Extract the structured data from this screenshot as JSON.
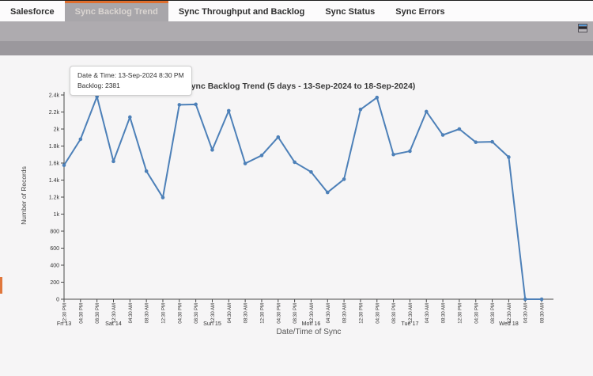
{
  "tabs": {
    "items": [
      {
        "label": "Salesforce",
        "active": false
      },
      {
        "label": "Sync Backlog Trend",
        "active": true
      },
      {
        "label": "Sync Throughput and Backlog",
        "active": false
      },
      {
        "label": "Sync Status",
        "active": false
      },
      {
        "label": "Sync Errors",
        "active": false
      }
    ]
  },
  "toolbar": {
    "window_icon": "window-icon"
  },
  "tooltip": {
    "datetime_label": "Date & Time: 13-Sep-2024 8:30 PM",
    "backlog_label": "Backlog: 2381"
  },
  "chart_data": {
    "type": "line",
    "title": "Sync Backlog Trend (5 days - 13-Sep-2024 to 18-Sep-2024)",
    "xlabel": "Date/Time of Sync",
    "ylabel": "Number of Records",
    "ylim": [
      0,
      2400
    ],
    "grid": false,
    "legend": "none",
    "y_ticks": [
      {
        "value": 0,
        "label": "0"
      },
      {
        "value": 200,
        "label": "200"
      },
      {
        "value": 400,
        "label": "400"
      },
      {
        "value": 600,
        "label": "600"
      },
      {
        "value": 800,
        "label": "800"
      },
      {
        "value": 1000,
        "label": "1k"
      },
      {
        "value": 1200,
        "label": "1.2k"
      },
      {
        "value": 1400,
        "label": "1.4k"
      },
      {
        "value": 1600,
        "label": "1.6k"
      },
      {
        "value": 1800,
        "label": "1.8k"
      },
      {
        "value": 2000,
        "label": "2k"
      },
      {
        "value": 2200,
        "label": "2.2k"
      },
      {
        "value": 2400,
        "label": "2.4k"
      }
    ],
    "x_labels": [
      "12:30 PM",
      "04:30 PM",
      "08:30 PM",
      "12:30 AM",
      "04:30 AM",
      "08:30 AM",
      "12:30 PM",
      "04:30 PM",
      "08:30 PM",
      "12:30 AM",
      "04:30 AM",
      "08:30 AM",
      "12:30 PM",
      "04:30 PM",
      "08:30 PM",
      "12:30 AM",
      "04:30 AM",
      "08:30 AM",
      "12:30 PM",
      "04:30 PM",
      "08:30 PM",
      "12:30 AM",
      "04:30 AM",
      "08:30 AM",
      "12:30 PM",
      "04:30 PM",
      "08:30 PM",
      "12:30 AM",
      "04:30 AM",
      "08:30 AM"
    ],
    "day_labels": [
      {
        "index": 0,
        "label": "Fri 13"
      },
      {
        "index": 3,
        "label": "Sat 14"
      },
      {
        "index": 9,
        "label": "Sun 15"
      },
      {
        "index": 15,
        "label": "Mon 16"
      },
      {
        "index": 21,
        "label": "Tue 17"
      },
      {
        "index": 27,
        "label": "Wed 18"
      }
    ],
    "series": [
      {
        "name": "Backlog",
        "color": "#4d80b8",
        "values": [
          1575,
          1880,
          2381,
          1620,
          2140,
          1505,
          1195,
          2285,
          2290,
          1755,
          2215,
          1595,
          1690,
          1905,
          1610,
          1495,
          1255,
          1410,
          2230,
          2370,
          1700,
          1740,
          2205,
          1930,
          2000,
          1845,
          1850,
          1670,
          0,
          0
        ]
      }
    ],
    "highlighted_point": {
      "index": 2,
      "datetime": "13-Sep-2024 8:30 PM",
      "backlog": 2381
    }
  },
  "colors": {
    "accent_orange": "#e06f2e",
    "active_tab_bg": "#a8a6aa",
    "strip_gray_1": "#aeabaf",
    "strip_gray_2": "#9b989d",
    "chart_bg": "#f6f5f6",
    "line_blue": "#4d80b8"
  }
}
